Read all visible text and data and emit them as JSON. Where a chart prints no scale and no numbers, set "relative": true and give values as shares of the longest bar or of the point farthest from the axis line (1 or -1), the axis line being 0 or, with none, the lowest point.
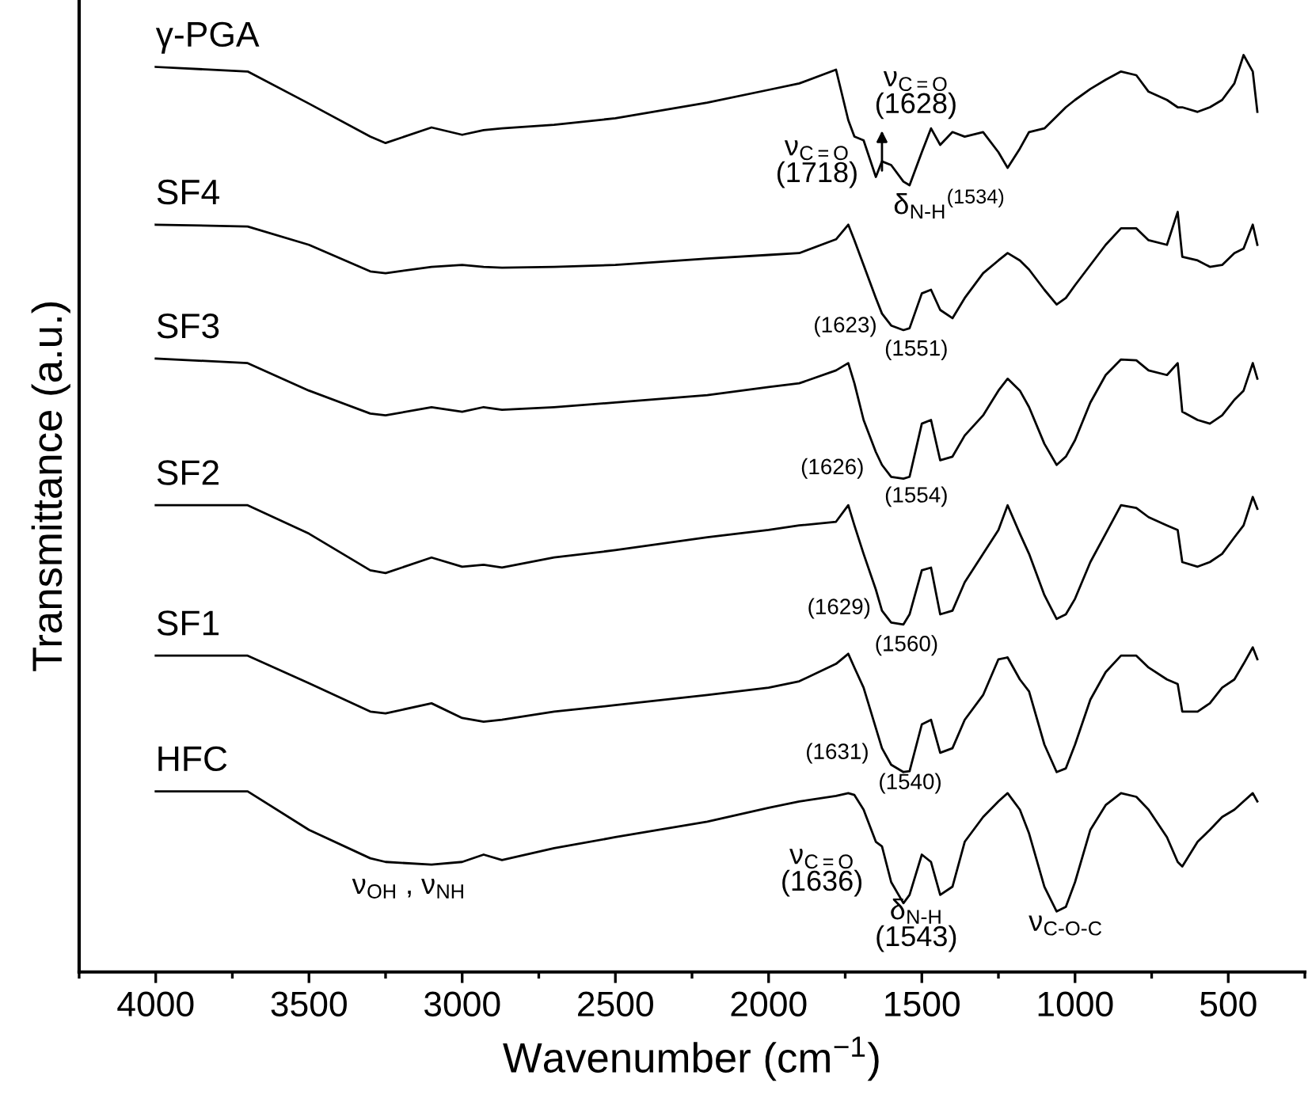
{
  "chart_data": {
    "type": "line",
    "relative": true,
    "xlabel": "Wavenumber (cm$^{−1}$)",
    "ylabel": "Transmittance (a.u.)",
    "xlim": [
      4250,
      250
    ],
    "xticks": [
      {
        "value": 4250,
        "label": null
      },
      4000,
      {
        "value": 3750,
        "label": null
      },
      3500,
      {
        "value": 3250,
        "label": null
      },
      3000,
      {
        "value": 2750,
        "label": null
      },
      2500,
      {
        "value": 2250,
        "label": null
      },
      2000,
      {
        "value": 1750,
        "label": null
      },
      1500,
      {
        "value": 1250,
        "label": null
      },
      1000,
      {
        "value": 750,
        "label": null
      },
      500,
      {
        "value": 250,
        "label": null
      }
    ],
    "x": [
      4000,
      3700,
      3500,
      3300,
      3250,
      3100,
      3000,
      2930,
      2870,
      2700,
      2500,
      2200,
      2000,
      1900,
      1780,
      1740,
      1720,
      1690,
      1650,
      1630,
      1600,
      1560,
      1540,
      1500,
      1470,
      1440,
      1400,
      1360,
      1300,
      1250,
      1220,
      1180,
      1150,
      1100,
      1060,
      1030,
      1000,
      950,
      900,
      850,
      800,
      760,
      700,
      665,
      650,
      600,
      560,
      520,
      480,
      450,
      420,
      405
    ],
    "series": [
      {
        "name": "γ-PGA",
        "color": "#000000",
        "values": [
          0.987,
          0.982,
          0.947,
          0.911,
          0.904,
          0.921,
          0.913,
          0.918,
          0.92,
          0.924,
          0.931,
          0.948,
          0.962,
          0.969,
          0.984,
          0.929,
          0.911,
          0.907,
          0.867,
          0.884,
          0.88,
          0.862,
          0.858,
          0.894,
          0.92,
          0.902,
          0.916,
          0.911,
          0.916,
          0.894,
          0.877,
          0.898,
          0.916,
          0.92,
          0.933,
          0.943,
          0.951,
          0.963,
          0.973,
          0.982,
          0.978,
          0.96,
          0.951,
          0.943,
          0.943,
          0.938,
          0.943,
          0.951,
          0.969,
          1.0,
          0.982,
          0.938
        ]
      },
      {
        "name": "SF4",
        "color": "#000000",
        "values": [
          0.815,
          0.813,
          0.793,
          0.764,
          0.762,
          0.769,
          0.771,
          0.769,
          0.768,
          0.769,
          0.771,
          0.778,
          0.782,
          0.784,
          0.799,
          0.815,
          0.798,
          0.771,
          0.735,
          0.718,
          0.705,
          0.7,
          0.702,
          0.74,
          0.744,
          0.722,
          0.713,
          0.735,
          0.762,
          0.776,
          0.784,
          0.776,
          0.766,
          0.744,
          0.728,
          0.735,
          0.749,
          0.771,
          0.793,
          0.811,
          0.811,
          0.798,
          0.793,
          0.829,
          0.78,
          0.776,
          0.769,
          0.771,
          0.784,
          0.789,
          0.815,
          0.793
        ]
      },
      {
        "name": "SF3",
        "color": "#000000",
        "values": [
          0.669,
          0.664,
          0.634,
          0.609,
          0.607,
          0.616,
          0.611,
          0.616,
          0.613,
          0.616,
          0.621,
          0.629,
          0.638,
          0.642,
          0.656,
          0.664,
          0.642,
          0.602,
          0.567,
          0.553,
          0.54,
          0.538,
          0.54,
          0.598,
          0.602,
          0.558,
          0.562,
          0.585,
          0.607,
          0.634,
          0.647,
          0.634,
          0.616,
          0.576,
          0.553,
          0.562,
          0.58,
          0.621,
          0.651,
          0.668,
          0.667,
          0.656,
          0.651,
          0.664,
          0.611,
          0.602,
          0.598,
          0.607,
          0.624,
          0.634,
          0.664,
          0.647
        ]
      },
      {
        "name": "SF2",
        "color": "#000000",
        "values": [
          0.509,
          0.509,
          0.478,
          0.438,
          0.435,
          0.452,
          0.442,
          0.444,
          0.441,
          0.452,
          0.46,
          0.474,
          0.482,
          0.487,
          0.491,
          0.509,
          0.487,
          0.456,
          0.417,
          0.394,
          0.381,
          0.379,
          0.39,
          0.438,
          0.441,
          0.39,
          0.394,
          0.425,
          0.456,
          0.482,
          0.509,
          0.478,
          0.456,
          0.411,
          0.385,
          0.39,
          0.407,
          0.447,
          0.478,
          0.509,
          0.506,
          0.496,
          0.487,
          0.482,
          0.447,
          0.442,
          0.447,
          0.456,
          0.474,
          0.487,
          0.518,
          0.505
        ]
      },
      {
        "name": "SF1",
        "color": "#000000",
        "values": [
          0.345,
          0.345,
          0.315,
          0.284,
          0.282,
          0.293,
          0.277,
          0.273,
          0.275,
          0.284,
          0.291,
          0.302,
          0.31,
          0.317,
          0.336,
          0.347,
          0.332,
          0.31,
          0.266,
          0.244,
          0.226,
          0.218,
          0.219,
          0.27,
          0.275,
          0.239,
          0.244,
          0.275,
          0.302,
          0.341,
          0.343,
          0.319,
          0.306,
          0.248,
          0.218,
          0.222,
          0.248,
          0.297,
          0.327,
          0.345,
          0.345,
          0.332,
          0.319,
          0.314,
          0.284,
          0.284,
          0.293,
          0.31,
          0.319,
          0.336,
          0.354,
          0.341
        ]
      },
      {
        "name": "HFC",
        "color": "#000000",
        "values": [
          0.197,
          0.197,
          0.155,
          0.124,
          0.12,
          0.117,
          0.12,
          0.128,
          0.122,
          0.135,
          0.147,
          0.164,
          0.179,
          0.186,
          0.192,
          0.195,
          0.193,
          0.177,
          0.142,
          0.137,
          0.098,
          0.075,
          0.084,
          0.128,
          0.12,
          0.084,
          0.093,
          0.142,
          0.169,
          0.186,
          0.195,
          0.177,
          0.151,
          0.093,
          0.066,
          0.071,
          0.098,
          0.155,
          0.182,
          0.195,
          0.191,
          0.177,
          0.147,
          0.12,
          0.115,
          0.142,
          0.155,
          0.169,
          0.177,
          0.186,
          0.195,
          0.186
        ]
      }
    ],
    "annotations": [
      "ν$_{C=O}$\n(1718)",
      "ν$_{C=O}$\n(1628)",
      "δ$_{N-H}$$^{(1534)}$",
      "(1623)",
      "(1551)",
      "(1626)",
      "(1554)",
      "(1629)",
      "(1560)",
      "(1631)",
      "(1540)",
      "ν$_{C=O}$\n(1636)",
      "δ$_{N-H}$\n(1543)",
      "ν$_{C-O-C}$",
      "ν$_{OH}$ , ν$_{NH}$"
    ],
    "legend": false,
    "grid": false
  }
}
